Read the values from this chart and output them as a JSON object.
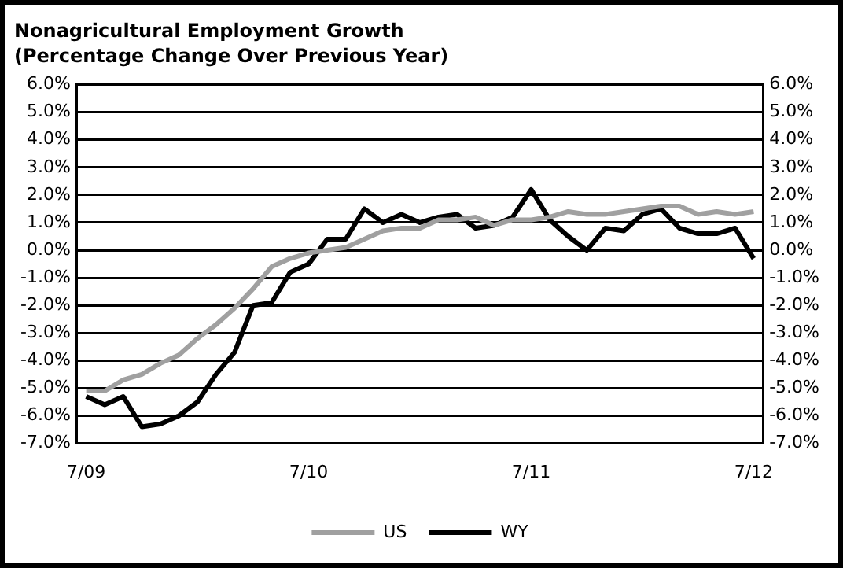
{
  "chart_data": {
    "type": "line",
    "title": "Nonagricultural Employment Growth",
    "subtitle": "(Percentage Change Over Previous Year)",
    "categories": [
      "7/09",
      null,
      null,
      null,
      null,
      null,
      null,
      null,
      null,
      null,
      null,
      null,
      "7/10",
      null,
      null,
      null,
      null,
      null,
      null,
      null,
      null,
      null,
      null,
      null,
      "7/11",
      null,
      null,
      null,
      null,
      null,
      null,
      null,
      null,
      null,
      null,
      null,
      "7/12"
    ],
    "series": [
      {
        "name": "US",
        "color": "#a0a0a0",
        "values": [
          -5.1,
          -5.1,
          -4.7,
          -4.5,
          -4.1,
          -3.8,
          -3.2,
          -2.7,
          -2.1,
          -1.4,
          -0.6,
          -0.3,
          -0.1,
          0.0,
          0.1,
          0.4,
          0.7,
          0.8,
          0.8,
          1.1,
          1.1,
          1.2,
          0.9,
          1.1,
          1.1,
          1.2,
          1.4,
          1.3,
          1.3,
          1.4,
          1.5,
          1.6,
          1.6,
          1.3,
          1.4,
          1.3,
          1.4
        ]
      },
      {
        "name": "WY",
        "color": "#000000",
        "values": [
          -5.3,
          -5.6,
          -5.3,
          -6.4,
          -6.3,
          -6.0,
          -5.5,
          -4.5,
          -3.7,
          -2.0,
          -1.9,
          -0.8,
          -0.5,
          0.4,
          0.4,
          1.5,
          1.0,
          1.3,
          1.0,
          1.2,
          1.3,
          0.8,
          0.9,
          1.2,
          2.2,
          1.1,
          0.5,
          0.0,
          0.8,
          0.7,
          1.3,
          1.5,
          0.8,
          0.6,
          0.6,
          0.8,
          -0.3
        ]
      }
    ],
    "ylim": [
      -7,
      6
    ],
    "yticks": [
      {
        "value": -7,
        "label": "-7.0%"
      },
      {
        "value": -6,
        "label": "-6.0%"
      },
      {
        "value": -5,
        "label": "-5.0%"
      },
      {
        "value": -4,
        "label": "-4.0%"
      },
      {
        "value": -3,
        "label": "-3.0%"
      },
      {
        "value": -2,
        "label": "-2.0%"
      },
      {
        "value": -1,
        "label": "-1.0%"
      },
      {
        "value": 0,
        "label": "0.0%"
      },
      {
        "value": 1,
        "label": "1.0%"
      },
      {
        "value": 2,
        "label": "2.0%"
      },
      {
        "value": 3,
        "label": "3.0%"
      },
      {
        "value": 4,
        "label": "4.0%"
      },
      {
        "value": 5,
        "label": "5.0%"
      },
      {
        "value": 6,
        "label": "6.0%"
      }
    ],
    "y2lim": [
      -7,
      6
    ],
    "y2ticks": [
      {
        "value": -7,
        "label": "-7.0%"
      },
      {
        "value": -6,
        "label": "-6.0%"
      },
      {
        "value": -5,
        "label": "-5.0%"
      },
      {
        "value": -4,
        "label": "-4.0%"
      },
      {
        "value": -3,
        "label": "-3.0%"
      },
      {
        "value": -2,
        "label": "-2.0%"
      },
      {
        "value": -1,
        "label": "-1.0%"
      },
      {
        "value": 0,
        "label": "0.0%"
      },
      {
        "value": 1,
        "label": "1.0%"
      },
      {
        "value": 2,
        "label": "2.0%"
      },
      {
        "value": 3,
        "label": "3.0%"
      },
      {
        "value": 4,
        "label": "4.0%"
      },
      {
        "value": 5,
        "label": "5.0%"
      },
      {
        "value": 6,
        "label": "6.0%"
      }
    ],
    "grid": "y",
    "legend": "bottom",
    "marker": "none",
    "line_style": "solid"
  }
}
